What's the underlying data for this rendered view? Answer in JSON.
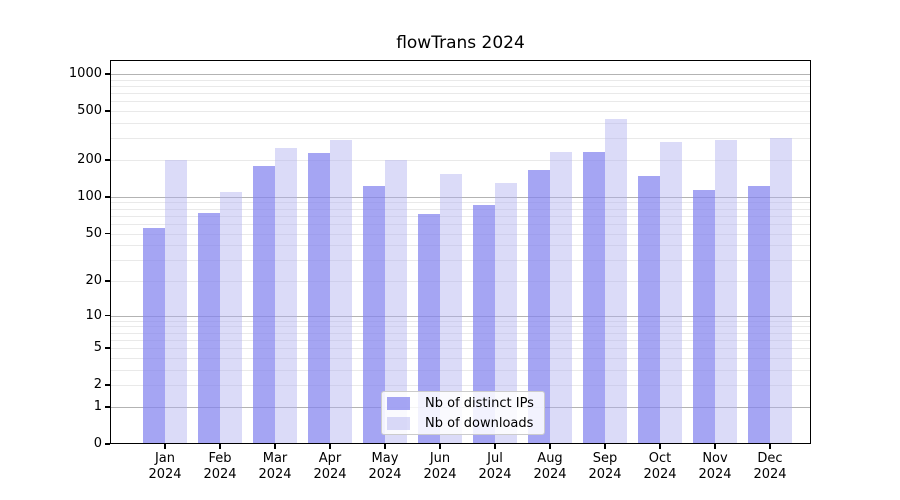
{
  "chart_data": {
    "type": "bar",
    "title": "flowTrans 2024",
    "categories": [
      "Jan",
      "Feb",
      "Mar",
      "Apr",
      "May",
      "Jun",
      "Jul",
      "Aug",
      "Sep",
      "Oct",
      "Nov",
      "Dec"
    ],
    "tick_year": "2024",
    "series": [
      {
        "name": "Nb of distinct IPs",
        "color": "rgba(130,130,238,0.72)",
        "values": [
          56,
          74,
          180,
          228,
          123,
          72,
          86,
          165,
          232,
          148,
          113,
          123
        ]
      },
      {
        "name": "Nb of downloads",
        "color": "rgba(175,175,240,0.45)",
        "values": [
          201,
          110,
          252,
          292,
          201,
          155,
          130,
          233,
          430,
          280,
          290,
          303
        ]
      }
    ],
    "xlabel": "",
    "ylabel": "",
    "yscale": "log1p",
    "ylim": [
      0,
      1300
    ],
    "yticks": [
      0,
      1,
      2,
      5,
      10,
      20,
      50,
      100,
      200,
      500,
      1000
    ],
    "grid": {
      "major_ticks": [
        1,
        10,
        100,
        1000
      ],
      "major_color": "#b3b3b3",
      "minor_color": "#e9e9e9"
    },
    "legend_position": "lower center"
  }
}
